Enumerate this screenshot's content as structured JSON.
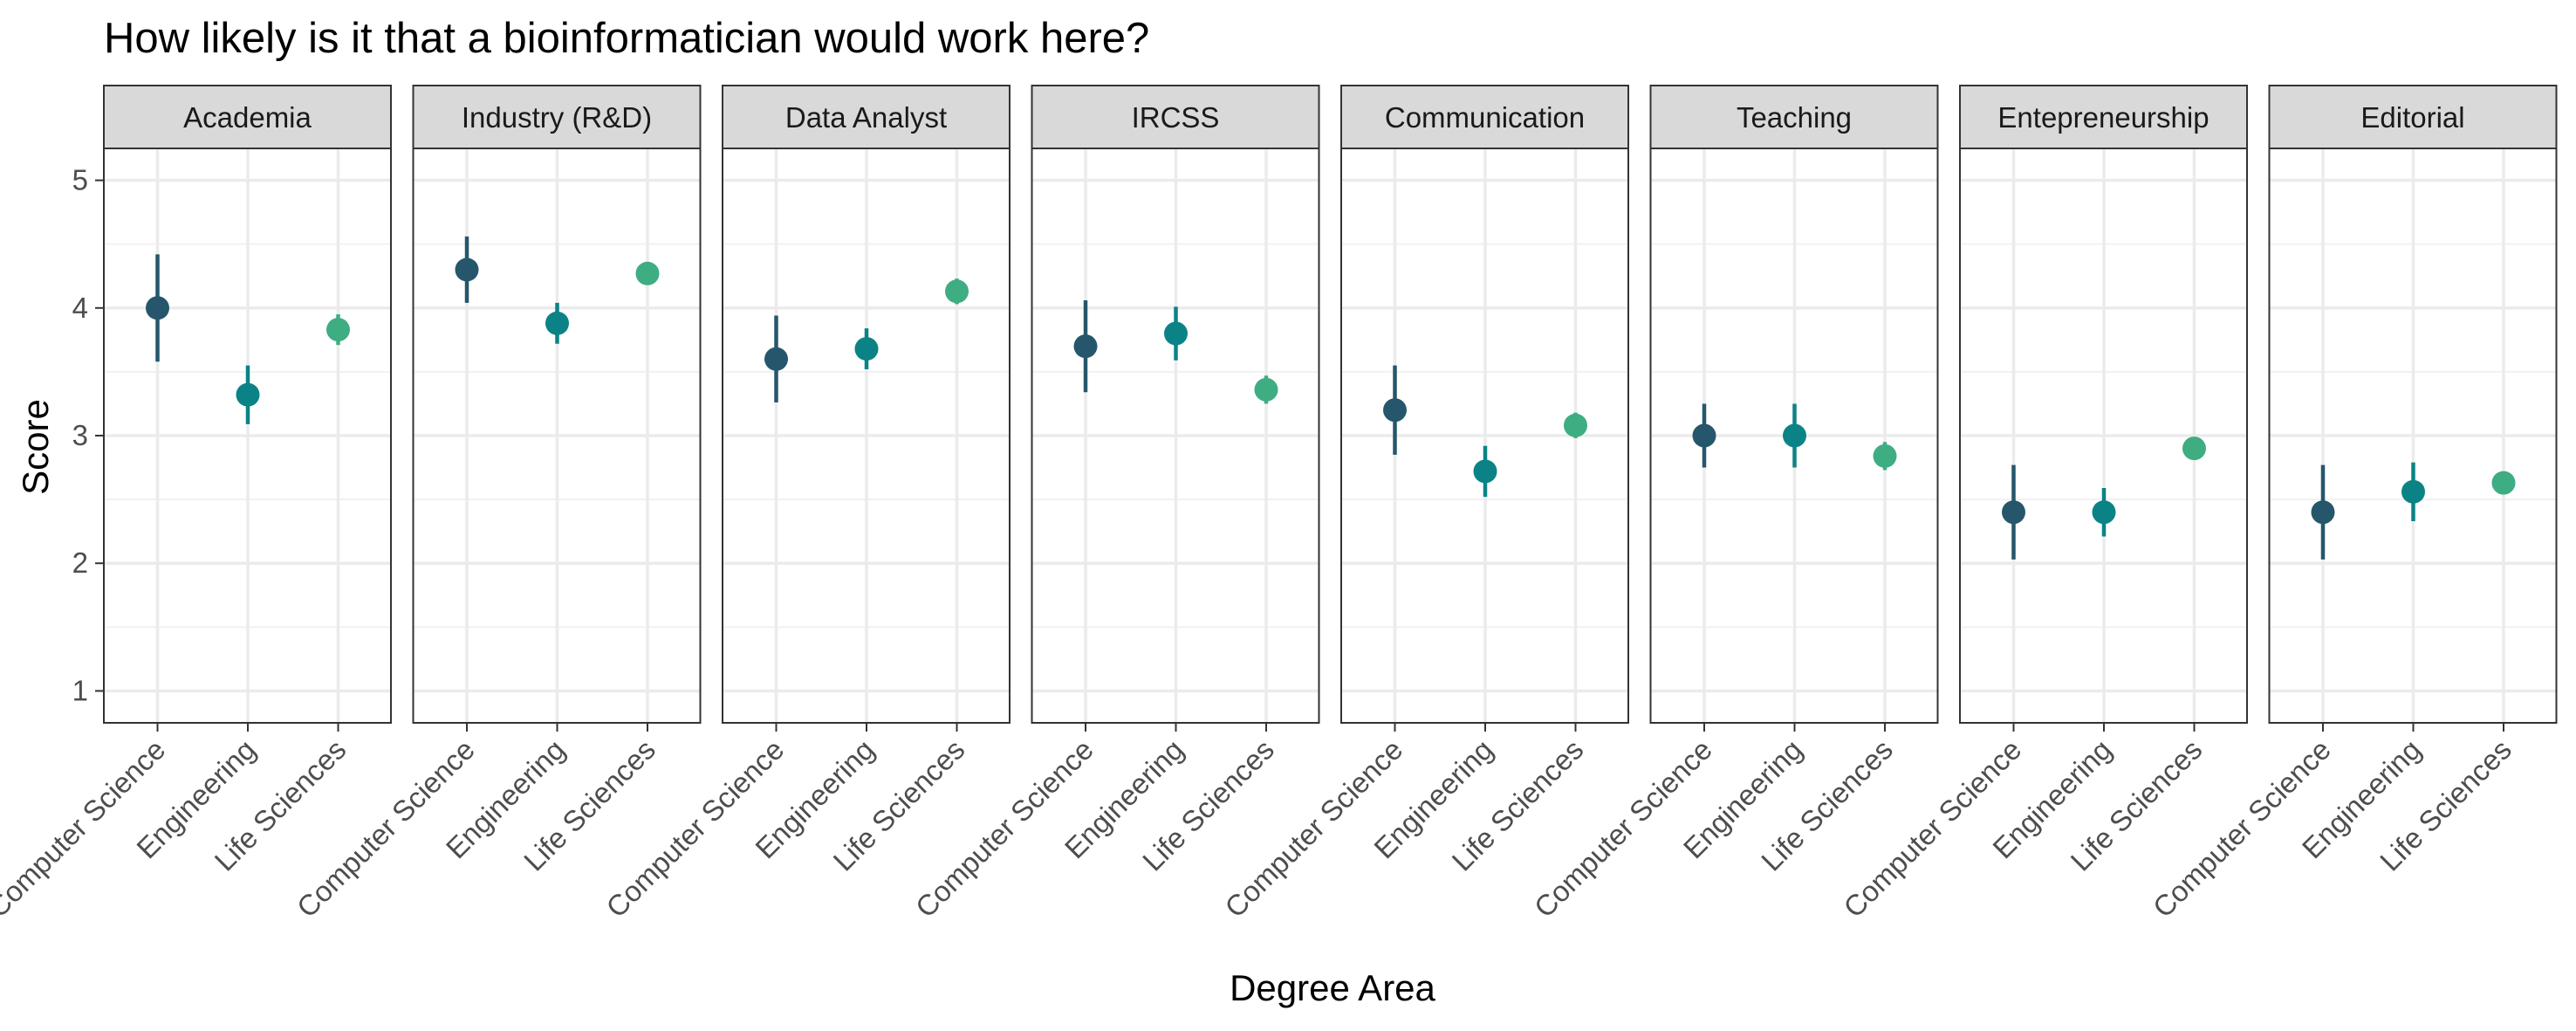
{
  "chart_data": {
    "type": "scatter",
    "title": "How likely is it that a bioinformatician would work here?",
    "xlabel": "Degree Area",
    "ylabel": "Score",
    "ylim": [
      0.75,
      5.25
    ],
    "yticks": [
      1,
      2,
      3,
      4,
      5
    ],
    "grid": true,
    "legend": "none",
    "categories": [
      "Computer Science",
      "Engineering",
      "Life Sciences"
    ],
    "colors": {
      "Computer Science": "#26566b",
      "Engineering": "#0b8386",
      "Life Sciences": "#3fad82"
    },
    "panels": [
      {
        "name": "Academia",
        "points": [
          {
            "x": "Computer Science",
            "y": 4.0,
            "lo": 3.58,
            "hi": 4.42
          },
          {
            "x": "Engineering",
            "y": 3.32,
            "lo": 3.09,
            "hi": 3.55
          },
          {
            "x": "Life Sciences",
            "y": 3.83,
            "lo": 3.71,
            "hi": 3.95
          }
        ]
      },
      {
        "name": "Industry (R&D)",
        "points": [
          {
            "x": "Computer Science",
            "y": 4.3,
            "lo": 4.04,
            "hi": 4.56
          },
          {
            "x": "Engineering",
            "y": 3.88,
            "lo": 3.72,
            "hi": 4.04
          },
          {
            "x": "Life Sciences",
            "y": 4.27,
            "lo": 4.19,
            "hi": 4.35
          }
        ]
      },
      {
        "name": "Data Analyst",
        "points": [
          {
            "x": "Computer Science",
            "y": 3.6,
            "lo": 3.26,
            "hi": 3.94
          },
          {
            "x": "Engineering",
            "y": 3.68,
            "lo": 3.52,
            "hi": 3.84
          },
          {
            "x": "Life Sciences",
            "y": 4.13,
            "lo": 4.03,
            "hi": 4.23
          }
        ]
      },
      {
        "name": "IRCSS",
        "points": [
          {
            "x": "Computer Science",
            "y": 3.7,
            "lo": 3.34,
            "hi": 4.06
          },
          {
            "x": "Engineering",
            "y": 3.8,
            "lo": 3.59,
            "hi": 4.01
          },
          {
            "x": "Life Sciences",
            "y": 3.36,
            "lo": 3.25,
            "hi": 3.47
          }
        ]
      },
      {
        "name": "Communication",
        "points": [
          {
            "x": "Computer Science",
            "y": 3.2,
            "lo": 2.85,
            "hi": 3.55
          },
          {
            "x": "Engineering",
            "y": 2.72,
            "lo": 2.52,
            "hi": 2.92
          },
          {
            "x": "Life Sciences",
            "y": 3.08,
            "lo": 2.98,
            "hi": 3.18
          }
        ]
      },
      {
        "name": "Teaching",
        "points": [
          {
            "x": "Computer Science",
            "y": 3.0,
            "lo": 2.75,
            "hi": 3.25
          },
          {
            "x": "Engineering",
            "y": 3.0,
            "lo": 2.75,
            "hi": 3.25
          },
          {
            "x": "Life Sciences",
            "y": 2.84,
            "lo": 2.73,
            "hi": 2.95
          }
        ]
      },
      {
        "name": "Entepreneurship",
        "points": [
          {
            "x": "Computer Science",
            "y": 2.4,
            "lo": 2.03,
            "hi": 2.77
          },
          {
            "x": "Engineering",
            "y": 2.4,
            "lo": 2.21,
            "hi": 2.59
          },
          {
            "x": "Life Sciences",
            "y": 2.9,
            "lo": 2.83,
            "hi": 2.97
          }
        ]
      },
      {
        "name": "Editorial",
        "points": [
          {
            "x": "Computer Science",
            "y": 2.4,
            "lo": 2.03,
            "hi": 2.77
          },
          {
            "x": "Engineering",
            "y": 2.56,
            "lo": 2.33,
            "hi": 2.79
          },
          {
            "x": "Life Sciences",
            "y": 2.63,
            "lo": 2.54,
            "hi": 2.72
          }
        ]
      }
    ]
  }
}
